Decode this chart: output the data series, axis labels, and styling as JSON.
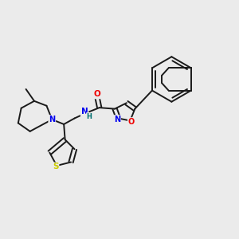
{
  "background_color": "#ebebeb",
  "bond_color": "#1a1a1a",
  "atom_colors": {
    "N": "#0000ee",
    "O": "#ee0000",
    "S": "#cccc00",
    "H": "#007070",
    "C": "#1a1a1a"
  },
  "figsize": [
    3.0,
    3.0
  ],
  "dpi": 100
}
